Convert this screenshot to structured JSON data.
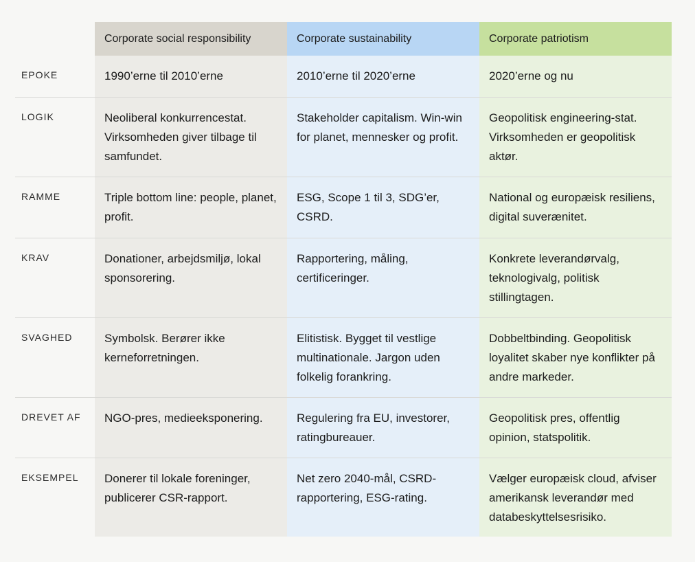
{
  "headers": {
    "col1": "Corporate social responsibility",
    "col2": "Corporate sustainability",
    "col3": "Corporate patriotism"
  },
  "rows": [
    {
      "label": "EPOKE",
      "c1": "1990’erne til 2010’erne",
      "c2": "2010’erne til 2020’erne",
      "c3": "2020’erne og nu"
    },
    {
      "label": "LOGIK",
      "c1": "Neoliberal konkurrencestat. Virksomheden giver tilbage til samfundet.",
      "c2": "Stakeholder capitalism. Win-win for planet, mennesker og profit.",
      "c3": "Geopolitisk engineering-stat. Virksomheden er geopolitisk aktør."
    },
    {
      "label": "RAMME",
      "c1": "Triple bottom line: people, planet, profit.",
      "c2": "ESG, Scope 1 til 3, SDG’er, CSRD.",
      "c3": "National og europæisk resiliens, digital suverænitet."
    },
    {
      "label": "KRAV",
      "c1": "Donationer, arbejdsmiljø, lokal sponsorering.",
      "c2": "Rapportering, måling, certificeringer.",
      "c3": "Konkrete leverandørvalg, teknologivalg, politisk stillingtagen."
    },
    {
      "label": "SVAGHED",
      "c1": "Symbolsk. Berører ikke kerneforretningen.",
      "c2": "Elitistisk. Bygget til vestlige multinationale. Jargon uden folkelig forankring.",
      "c3": "Dobbeltbinding. Geopolitisk loyalitet skaber nye konflikter på andre markeder."
    },
    {
      "label": "DREVET AF",
      "c1": "NGO-pres, medieeksponering.",
      "c2": "Regulering fra EU, investorer, ratingbureauer.",
      "c3": "Geopolitisk pres, offentlig opinion, statspolitik."
    },
    {
      "label": "EKSEMPEL",
      "c1": "Donerer til lokale foreninger, publicerer CSR-rapport.",
      "c2": "Net zero 2040-mål, CSRD-rapportering, ESG-rating.",
      "c3": "Vælger europæisk cloud, afviser amerikansk leverandør med databeskyttelsesrisiko."
    }
  ]
}
